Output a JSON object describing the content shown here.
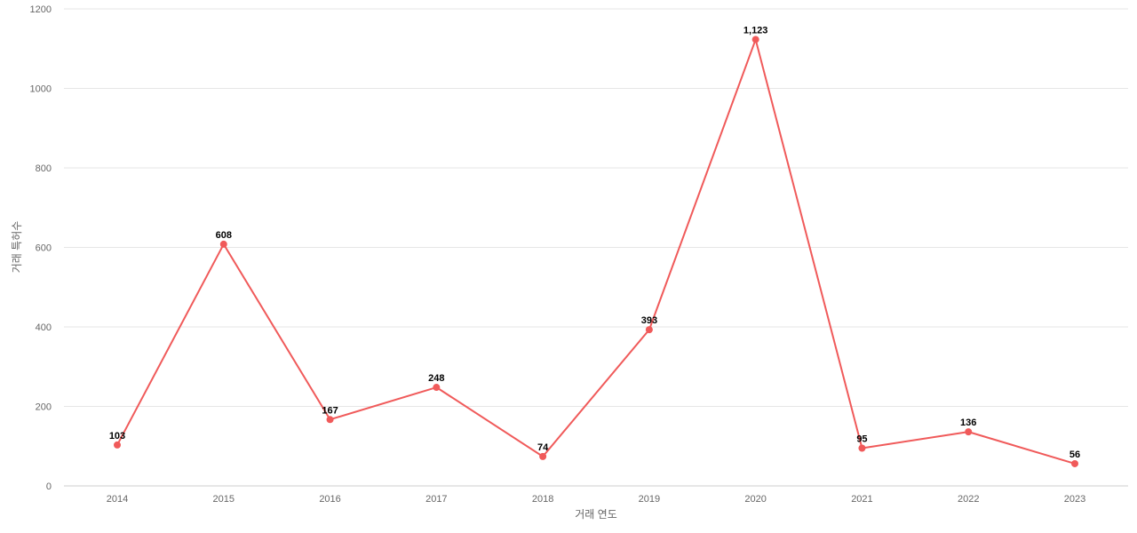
{
  "chart_data": {
    "type": "line",
    "title": "",
    "xlabel": "거래 연도",
    "ylabel": "거래 특허수",
    "x": [
      "2014",
      "2015",
      "2016",
      "2017",
      "2018",
      "2019",
      "2020",
      "2021",
      "2022",
      "2023"
    ],
    "series": [
      {
        "values": [
          103,
          608,
          167,
          248,
          74,
          393,
          1123,
          95,
          136,
          56
        ],
        "labels": [
          "103",
          "608",
          "167",
          "248",
          "74",
          "393",
          "1,123",
          "95",
          "136",
          "56"
        ],
        "color": "#f05a5a"
      }
    ],
    "ylim": [
      0,
      1200
    ],
    "yticks": [
      "0",
      "200",
      "400",
      "600",
      "800",
      "1000",
      "1200"
    ],
    "grid": true,
    "legend": "none"
  }
}
